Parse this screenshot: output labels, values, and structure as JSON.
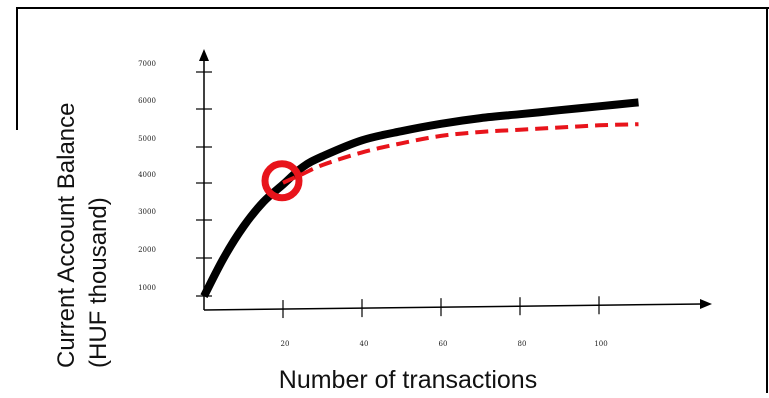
{
  "chart_data": {
    "type": "line",
    "title": "",
    "xlabel": "Number of transactions",
    "ylabel_lines": [
      "Current Account Balance",
      "(HUF thousand)"
    ],
    "x_ticks": [
      "20",
      "40",
      "60",
      "80",
      "100"
    ],
    "y_ticks": [
      "1000",
      "2000",
      "3000",
      "4000",
      "5000",
      "6000",
      "7000"
    ],
    "xlim": [
      0,
      125
    ],
    "ylim": [
      0,
      7000
    ],
    "grid": false,
    "series": [
      {
        "style": "solid",
        "color": "#000000",
        "x": [
          0,
          5,
          10,
          15,
          20,
          25,
          30,
          40,
          50,
          60,
          70,
          80,
          90,
          100,
          110
        ],
        "y": [
          400,
          1500,
          2400,
          3100,
          3600,
          4100,
          4400,
          4850,
          5100,
          5300,
          5450,
          5550,
          5650,
          5750,
          5850
        ]
      },
      {
        "style": "dashed",
        "color": "#e8141b",
        "x": [
          20,
          25,
          30,
          40,
          50,
          60,
          70,
          80,
          90,
          100,
          110
        ],
        "y": [
          3650,
          3900,
          4150,
          4500,
          4750,
          4950,
          5050,
          5100,
          5150,
          5200,
          5220
        ]
      }
    ],
    "highlight": {
      "x": 20,
      "y": 3650,
      "color": "#e8141b",
      "shape": "circle"
    }
  }
}
